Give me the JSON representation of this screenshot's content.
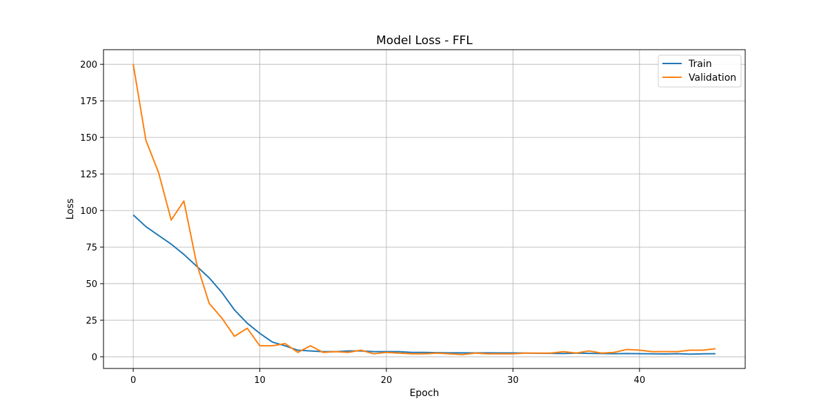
{
  "chart_data": {
    "type": "line",
    "title": "Model Loss - FFL",
    "xlabel": "Epoch",
    "ylabel": "Loss",
    "xlim": [
      -2.35,
      48.35
    ],
    "ylim": [
      -8,
      210
    ],
    "xticks": [
      0,
      10,
      20,
      30,
      40
    ],
    "yticks": [
      0,
      25,
      50,
      75,
      100,
      125,
      150,
      175,
      200
    ],
    "grid": true,
    "legend_position": "top-right",
    "x": [
      0,
      1,
      2,
      3,
      4,
      5,
      6,
      7,
      8,
      9,
      10,
      11,
      12,
      13,
      14,
      15,
      16,
      17,
      18,
      19,
      20,
      21,
      22,
      23,
      24,
      25,
      26,
      27,
      28,
      29,
      30,
      31,
      32,
      33,
      34,
      35,
      36,
      37,
      38,
      39,
      40,
      41,
      42,
      43,
      44,
      45,
      46
    ],
    "series": [
      {
        "name": "Train",
        "color": "#1f77b4",
        "values": [
          97,
          89,
          83,
          77,
          70,
          62,
          54,
          44,
          32,
          23,
          16,
          10,
          7.5,
          4.5,
          4,
          3.5,
          3.5,
          4,
          4,
          3.5,
          3.5,
          3.5,
          3,
          3,
          2.8,
          2.7,
          2.7,
          2.6,
          2.7,
          2.6,
          2.6,
          2.5,
          2.4,
          2.3,
          2.2,
          2.5,
          2.3,
          2.2,
          2.1,
          2.2,
          2.1,
          2,
          1.9,
          2.1,
          1.8,
          2,
          2.1
        ]
      },
      {
        "name": "Validation",
        "color": "#ff7f0e",
        "values": [
          200,
          148,
          126,
          93.5,
          106.5,
          64,
          36.5,
          26.5,
          14,
          19.5,
          7.5,
          7.5,
          9,
          3,
          7.5,
          3,
          3.5,
          3,
          4.5,
          2,
          3,
          2.5,
          2,
          2,
          2.5,
          2,
          1.5,
          2.5,
          2,
          2,
          2,
          2.5,
          2.5,
          2.5,
          3.5,
          2.5,
          4,
          2.5,
          3,
          5,
          4.5,
          3.5,
          3.5,
          3.5,
          4.5,
          4.5,
          5.5
        ]
      }
    ]
  }
}
